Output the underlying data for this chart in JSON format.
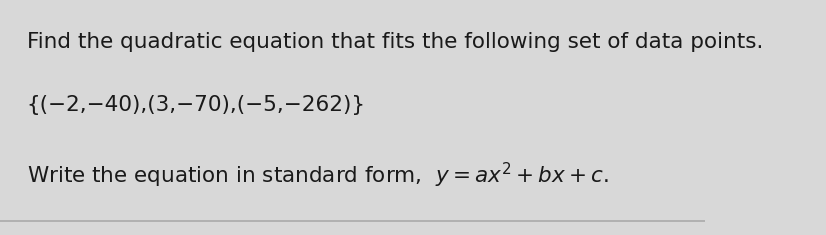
{
  "line1": "Find the quadratic equation that fits the following set of data points.",
  "line2": "{(−2,−40),(3,−70),(−5,−262)}",
  "bg_color": "#d8d8d8",
  "card_color": "#efefef",
  "text_color": "#1a1a1a",
  "line_color": "#aaaaaa",
  "font_size_line1": 15.5,
  "font_size_line2": 15.5,
  "font_size_line3": 15.5
}
